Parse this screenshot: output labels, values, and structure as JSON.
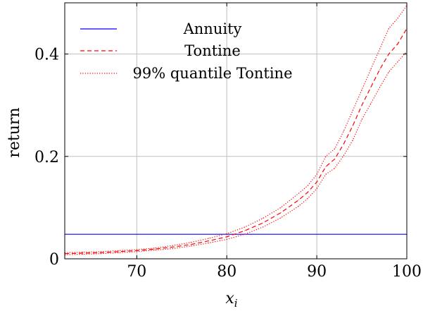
{
  "chart_data": {
    "type": "line",
    "xlabel_base": "x",
    "xlabel_sub": "i",
    "ylabel": "return",
    "xlim": [
      62,
      100
    ],
    "ylim": [
      0,
      0.5
    ],
    "xticks": [
      70,
      80,
      90,
      100
    ],
    "xtick_labels": [
      "70",
      "80",
      "90",
      "100"
    ],
    "yticks": [
      0,
      0.2,
      0.4
    ],
    "ytick_labels": [
      "0",
      "0.2",
      "0.4"
    ],
    "grid": true,
    "legend_position": "top-left",
    "series": [
      {
        "name": "Annuity",
        "style": "solid",
        "color": "#0000ff",
        "x": [
          62,
          100
        ],
        "y": [
          0.048,
          0.048
        ]
      },
      {
        "name": "Tontine",
        "style": "dashed",
        "color": "#ff0000",
        "x": [
          62,
          64,
          66,
          68,
          70,
          72,
          74,
          76,
          78,
          80,
          82,
          84,
          86,
          88,
          89,
          90,
          91,
          92,
          93,
          94,
          95,
          96,
          97,
          98,
          99,
          100
        ],
        "y": [
          0.01,
          0.011,
          0.012,
          0.014,
          0.016,
          0.019,
          0.023,
          0.028,
          0.035,
          0.043,
          0.055,
          0.07,
          0.09,
          0.115,
          0.13,
          0.15,
          0.18,
          0.195,
          0.225,
          0.26,
          0.3,
          0.335,
          0.37,
          0.4,
          0.42,
          0.45
        ]
      },
      {
        "name": "99% quantile Tontine",
        "style": "dotted",
        "color": "#ff0000",
        "x": [
          62,
          64,
          66,
          68,
          70,
          72,
          74,
          76,
          78,
          80,
          82,
          84,
          86,
          88,
          89,
          90,
          91,
          92,
          93,
          94,
          95,
          96,
          97,
          98,
          99,
          100
        ],
        "y": [
          0.012,
          0.013,
          0.014,
          0.016,
          0.018,
          0.021,
          0.026,
          0.032,
          0.04,
          0.049,
          0.062,
          0.079,
          0.1,
          0.128,
          0.143,
          0.165,
          0.2,
          0.215,
          0.25,
          0.29,
          0.33,
          0.37,
          0.41,
          0.45,
          0.47,
          0.495
        ]
      },
      {
        "name": "",
        "style": "dotted",
        "color": "#ff0000",
        "x": [
          62,
          64,
          66,
          68,
          70,
          72,
          74,
          76,
          78,
          80,
          82,
          84,
          86,
          88,
          89,
          90,
          91,
          92,
          93,
          94,
          95,
          96,
          97,
          98,
          99,
          100
        ],
        "y": [
          0.008,
          0.009,
          0.01,
          0.012,
          0.014,
          0.017,
          0.02,
          0.025,
          0.031,
          0.038,
          0.048,
          0.062,
          0.08,
          0.103,
          0.118,
          0.137,
          0.165,
          0.177,
          0.202,
          0.232,
          0.272,
          0.303,
          0.335,
          0.365,
          0.385,
          0.405
        ]
      }
    ]
  }
}
